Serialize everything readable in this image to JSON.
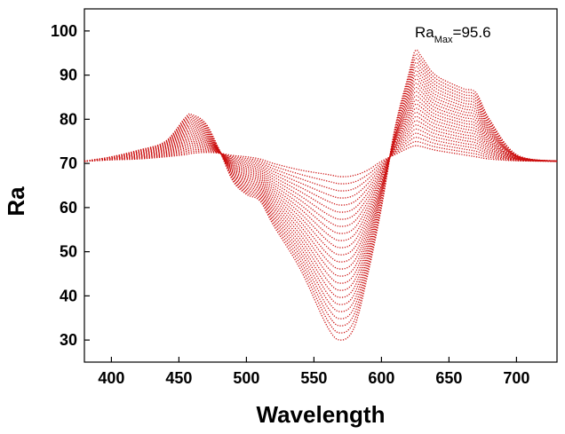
{
  "chart_data": {
    "type": "line",
    "title": "",
    "xlabel": "Wavelength",
    "ylabel": "Ra",
    "xlim": [
      380,
      730
    ],
    "ylim": [
      25,
      105
    ],
    "xticks": [
      400,
      450,
      500,
      550,
      600,
      650,
      700
    ],
    "yticks": [
      30,
      40,
      50,
      60,
      70,
      80,
      90,
      100
    ],
    "grid": false,
    "line_style": "dotted",
    "series_color": "#cc1010",
    "annotation": {
      "text_main": "Ra",
      "text_sub": "Max",
      "text_value": "=95.6",
      "at": [
        630,
        100
      ]
    },
    "x": [
      380,
      400,
      420,
      440,
      455,
      460,
      470,
      480,
      490,
      500,
      510,
      520,
      540,
      560,
      570,
      580,
      590,
      600,
      610,
      620,
      625,
      630,
      640,
      660,
      670,
      680,
      700,
      730
    ],
    "family_count": 24,
    "low_curve": [
      70.5,
      71.5,
      73,
      75,
      80.5,
      81,
      79,
      73,
      66,
      63,
      61.5,
      56,
      46,
      33,
      30,
      33,
      45,
      60,
      78,
      90,
      95.5,
      94,
      90,
      87,
      86,
      80,
      72,
      70.5
    ],
    "high_curve": [
      70.5,
      70.8,
      71,
      71.5,
      72,
      72.3,
      72.5,
      72.3,
      71.8,
      71.5,
      71,
      70,
      68.5,
      67.5,
      67,
      67.3,
      68.5,
      70.5,
      72,
      73.5,
      74,
      73.8,
      73,
      72,
      71.5,
      71,
      70.6,
      70.5
    ]
  }
}
